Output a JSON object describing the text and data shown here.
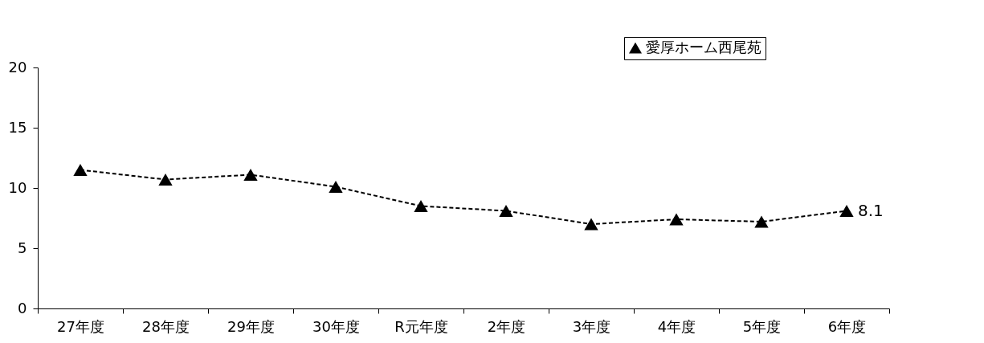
{
  "chart_data": {
    "type": "line",
    "categories": [
      "27年度",
      "28年度",
      "29年度",
      "30年度",
      "R元年度",
      "2年度",
      "3年度",
      "4年度",
      "5年度",
      "6年度"
    ],
    "series": [
      {
        "name": "愛厚ホーム西尾苑",
        "color": "#000000",
        "values": [
          11.5,
          10.7,
          11.1,
          10.1,
          8.5,
          8.1,
          7.0,
          7.4,
          7.2,
          8.1
        ],
        "value_labels": [
          null,
          null,
          null,
          null,
          null,
          null,
          null,
          null,
          null,
          "8.1"
        ]
      }
    ],
    "ylim": [
      0,
      20
    ],
    "yticks": [
      0,
      5,
      10,
      15,
      20
    ],
    "legend": "top right",
    "marker": "triangle",
    "line_style": "dashed"
  }
}
